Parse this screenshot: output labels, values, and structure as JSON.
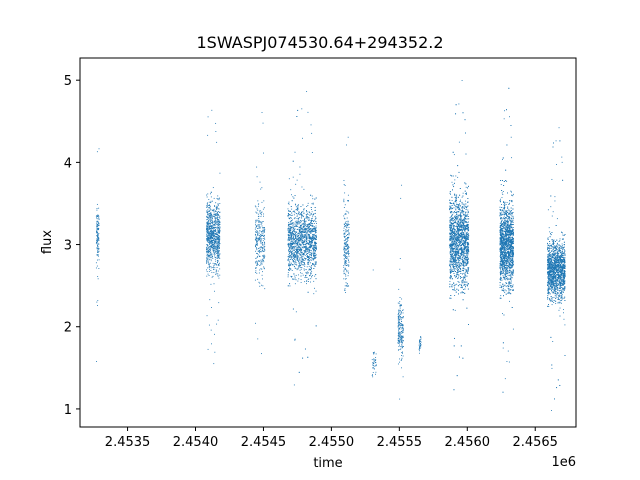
{
  "chart_data": {
    "type": "scatter",
    "title": "1SWASPJ074530.64+294352.2",
    "xlabel": "time",
    "ylabel": "flux",
    "x_offset_label": "1e6",
    "xlim": [
      2453150,
      2456800
    ],
    "ylim": [
      0.78,
      5.27
    ],
    "x_ticks": [
      2453500,
      2454000,
      2454500,
      2455000,
      2455500,
      2456000,
      2456500
    ],
    "x_tick_labels": [
      "2.4535",
      "2.4540",
      "2.4545",
      "2.4550",
      "2.4555",
      "2.4560",
      "2.4565"
    ],
    "y_ticks": [
      1,
      2,
      3,
      4,
      5
    ],
    "y_tick_labels": [
      "1",
      "2",
      "3",
      "4",
      "5"
    ],
    "grid": false,
    "marker_color": "#1f77b4",
    "clusters": [
      {
        "x_start": 2453270,
        "x_end": 2453290,
        "center": 3.08,
        "spread": 0.45,
        "points": 120
      },
      {
        "x_start": 2454080,
        "x_end": 2454180,
        "center": 3.1,
        "spread": 0.55,
        "points": 900
      },
      {
        "x_start": 2454440,
        "x_end": 2454510,
        "center": 3.05,
        "spread": 0.6,
        "points": 280
      },
      {
        "x_start": 2454680,
        "x_end": 2454890,
        "center": 3.05,
        "spread": 0.55,
        "points": 1700
      },
      {
        "x_start": 2455090,
        "x_end": 2455130,
        "center": 3.0,
        "spread": 0.65,
        "points": 220
      },
      {
        "x_start": 2455300,
        "x_end": 2455330,
        "center": 1.55,
        "spread": 0.2,
        "points": 40
      },
      {
        "x_start": 2455490,
        "x_end": 2455530,
        "center": 2.0,
        "spread": 0.45,
        "points": 200
      },
      {
        "x_start": 2455640,
        "x_end": 2455660,
        "center": 1.8,
        "spread": 0.12,
        "points": 30
      },
      {
        "x_start": 2455870,
        "x_end": 2456010,
        "center": 3.05,
        "spread": 0.7,
        "points": 2200
      },
      {
        "x_start": 2456240,
        "x_end": 2456340,
        "center": 3.0,
        "spread": 0.65,
        "points": 2000
      },
      {
        "x_start": 2456590,
        "x_end": 2456720,
        "center": 2.7,
        "spread": 0.45,
        "points": 1800
      }
    ]
  }
}
